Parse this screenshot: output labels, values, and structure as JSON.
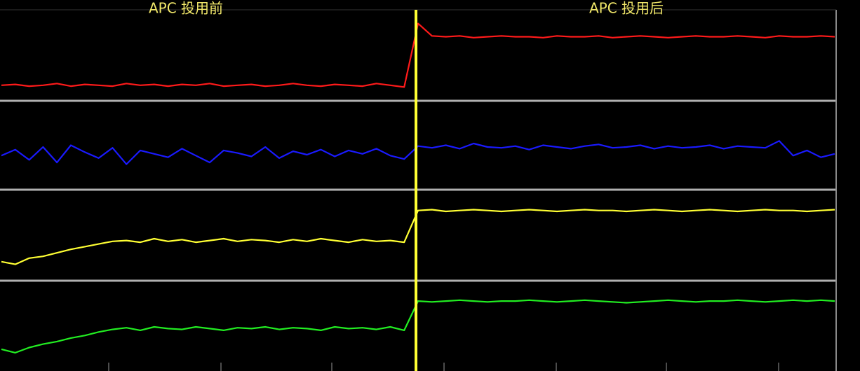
{
  "chart_data": [
    {
      "type": "line",
      "ylim": [
        0,
        100
      ],
      "annotations": [
        "APC 投用前",
        "APC 投用后"
      ],
      "series": [
        {
          "color": "#ff1a1a",
          "values": [
            16,
            17,
            15,
            16,
            18,
            15,
            17,
            16,
            15,
            18,
            16,
            17,
            15,
            17,
            16,
            18,
            15,
            16,
            17,
            15,
            16,
            18,
            16,
            15,
            17,
            16,
            15,
            18,
            16,
            14,
            86,
            72,
            71,
            72,
            70,
            71,
            72,
            71,
            71,
            70,
            72,
            71,
            71,
            72,
            70,
            71,
            72,
            71,
            70,
            71,
            72,
            71,
            71,
            72,
            71,
            70,
            72,
            71,
            71,
            72,
            71
          ]
        }
      ]
    },
    {
      "type": "line",
      "ylim": [
        0,
        100
      ],
      "series": [
        {
          "color": "#1a1aff",
          "values": [
            38,
            45,
            33,
            48,
            30,
            50,
            42,
            35,
            47,
            28,
            44,
            40,
            36,
            46,
            38,
            30,
            44,
            41,
            37,
            48,
            35,
            43,
            39,
            45,
            37,
            44,
            40,
            46,
            38,
            34,
            49,
            47,
            50,
            46,
            52,
            48,
            47,
            49,
            45,
            50,
            48,
            46,
            49,
            51,
            47,
            48,
            50,
            46,
            49,
            47,
            48,
            50,
            46,
            49,
            48,
            47,
            55,
            38,
            44,
            36,
            40
          ]
        }
      ]
    },
    {
      "type": "line",
      "ylim": [
        0,
        100
      ],
      "series": [
        {
          "color": "#ffff33",
          "values": [
            20,
            17,
            24,
            26,
            30,
            34,
            37,
            40,
            43,
            44,
            42,
            46,
            43,
            45,
            42,
            44,
            46,
            43,
            45,
            44,
            42,
            45,
            43,
            46,
            44,
            42,
            45,
            43,
            44,
            42,
            78,
            79,
            77,
            78,
            79,
            78,
            77,
            78,
            79,
            78,
            77,
            78,
            79,
            78,
            78,
            77,
            78,
            79,
            78,
            77,
            78,
            79,
            78,
            77,
            78,
            79,
            78,
            78,
            77,
            78,
            79
          ]
        }
      ]
    },
    {
      "type": "line",
      "ylim": [
        0,
        100
      ],
      "series": [
        {
          "color": "#22ee22",
          "values": [
            22,
            18,
            24,
            28,
            31,
            35,
            38,
            42,
            45,
            47,
            44,
            48,
            46,
            45,
            48,
            46,
            44,
            47,
            46,
            48,
            45,
            47,
            46,
            44,
            48,
            46,
            47,
            45,
            48,
            44,
            78,
            77,
            78,
            79,
            78,
            77,
            78,
            78,
            79,
            78,
            77,
            78,
            79,
            78,
            77,
            76,
            77,
            78,
            79,
            78,
            77,
            78,
            78,
            79,
            78,
            77,
            78,
            79,
            78,
            79,
            78
          ]
        }
      ]
    }
  ]
}
